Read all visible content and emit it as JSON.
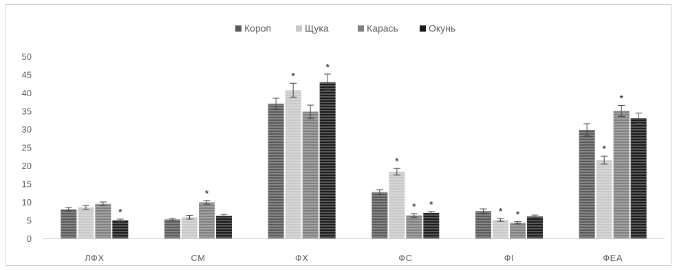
{
  "chart_data": {
    "type": "bar",
    "title": "",
    "xlabel": "",
    "ylabel": "",
    "ylim": [
      0,
      50
    ],
    "yticks": [
      0,
      5,
      10,
      15,
      20,
      25,
      30,
      35,
      40,
      45,
      50
    ],
    "grid": false,
    "legend_position": "top-center",
    "categories": [
      "ЛФХ",
      "СМ",
      "ФХ",
      "ФС",
      "ФІ",
      "ФЕА"
    ],
    "series": [
      {
        "name": "Короп",
        "color": "#595959",
        "values": [
          8.0,
          5.2,
          37.0,
          12.7,
          7.5,
          29.8
        ],
        "errors": [
          0.5,
          0.3,
          1.5,
          0.7,
          0.6,
          1.7
        ],
        "significant": [
          false,
          false,
          false,
          false,
          false,
          false
        ]
      },
      {
        "name": "Щука",
        "color": "#c8c8c8",
        "values": [
          8.5,
          5.8,
          40.7,
          18.3,
          5.1,
          21.5
        ],
        "errors": [
          0.5,
          0.5,
          1.9,
          0.9,
          0.4,
          1.1
        ],
        "significant": [
          false,
          false,
          true,
          true,
          true,
          true
        ]
      },
      {
        "name": "Карась",
        "color": "#7f7f7f",
        "values": [
          9.5,
          9.9,
          34.8,
          6.3,
          4.3,
          35.0
        ],
        "errors": [
          0.5,
          0.5,
          1.8,
          0.5,
          0.3,
          1.5
        ],
        "significant": [
          false,
          true,
          false,
          true,
          true,
          true
        ]
      },
      {
        "name": "Окунь",
        "color": "#1a1a1a",
        "values": [
          5.0,
          6.2,
          42.9,
          7.0,
          6.0,
          33.0
        ],
        "errors": [
          0.3,
          0.4,
          2.2,
          0.4,
          0.4,
          1.4
        ],
        "significant": [
          true,
          false,
          true,
          true,
          false,
          false
        ]
      }
    ],
    "significance_marker": "*"
  }
}
